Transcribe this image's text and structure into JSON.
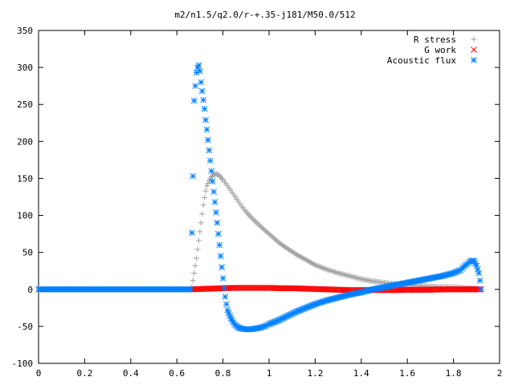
{
  "chart_data": {
    "type": "scatter",
    "title": "m2/n1.5/q2.0/r-+.35-j181/M50.0/512",
    "xlabel": "",
    "ylabel": "",
    "xlim": [
      0,
      2
    ],
    "ylim": [
      -100,
      350
    ],
    "x_ticks": [
      "0",
      "0.2",
      "0.4",
      "0.6",
      "0.8",
      "1",
      "1.2",
      "1.4",
      "1.6",
      "1.8",
      "2"
    ],
    "y_ticks": [
      "-100",
      "-50",
      "0",
      "50",
      "100",
      "150",
      "200",
      "250",
      "300",
      "350"
    ],
    "grid": false,
    "legend_position": "top-right",
    "series": [
      {
        "name": "R stress",
        "marker": "plus",
        "color": "#a0a0a0",
        "points": [
          [
            0.66,
            0
          ],
          [
            0.665,
            3
          ],
          [
            0.67,
            12
          ],
          [
            0.675,
            22
          ],
          [
            0.68,
            32
          ],
          [
            0.685,
            42
          ],
          [
            0.69,
            54
          ],
          [
            0.695,
            66
          ],
          [
            0.7,
            78
          ],
          [
            0.705,
            90
          ],
          [
            0.71,
            102
          ],
          [
            0.715,
            114
          ],
          [
            0.72,
            124
          ],
          [
            0.725,
            133
          ],
          [
            0.73,
            140
          ],
          [
            0.74,
            147
          ],
          [
            0.75,
            152
          ],
          [
            0.76,
            155
          ],
          [
            0.77,
            156
          ],
          [
            0.78,
            155
          ],
          [
            0.79,
            152
          ],
          [
            0.8,
            148
          ],
          [
            0.82,
            140
          ],
          [
            0.84,
            131
          ],
          [
            0.86,
            122
          ],
          [
            0.88,
            113
          ],
          [
            0.9,
            105
          ],
          [
            0.93,
            95
          ],
          [
            0.96,
            86
          ],
          [
            1.0,
            75
          ],
          [
            1.04,
            64
          ],
          [
            1.08,
            55
          ],
          [
            1.12,
            47
          ],
          [
            1.16,
            40
          ],
          [
            1.2,
            33
          ],
          [
            1.25,
            27
          ],
          [
            1.3,
            22
          ],
          [
            1.35,
            18
          ],
          [
            1.4,
            14
          ],
          [
            1.45,
            11
          ],
          [
            1.5,
            9
          ],
          [
            1.55,
            7
          ],
          [
            1.6,
            6
          ],
          [
            1.65,
            5
          ],
          [
            1.7,
            4
          ],
          [
            1.75,
            3
          ],
          [
            1.8,
            3
          ],
          [
            1.85,
            2
          ],
          [
            1.9,
            1
          ],
          [
            1.92,
            0
          ]
        ]
      },
      {
        "name": "G work",
        "marker": "cross",
        "color": "#ff0000",
        "points": [
          [
            0.66,
            0
          ],
          [
            0.7,
            0.5
          ],
          [
            0.75,
            1
          ],
          [
            0.8,
            1.5
          ],
          [
            0.85,
            2
          ],
          [
            0.9,
            2
          ],
          [
            0.95,
            2
          ],
          [
            1.0,
            2
          ],
          [
            1.05,
            1.5
          ],
          [
            1.1,
            1.5
          ],
          [
            1.15,
            1
          ],
          [
            1.2,
            0.5
          ],
          [
            1.25,
            0
          ],
          [
            1.3,
            -0.5
          ],
          [
            1.35,
            -1
          ],
          [
            1.4,
            -1
          ],
          [
            1.45,
            -1
          ],
          [
            1.5,
            -1
          ],
          [
            1.55,
            -1
          ],
          [
            1.6,
            -0.5
          ],
          [
            1.65,
            -0.5
          ],
          [
            1.7,
            -0.5
          ],
          [
            1.75,
            0
          ],
          [
            1.8,
            0
          ],
          [
            1.85,
            0
          ],
          [
            1.9,
            0
          ],
          [
            1.92,
            0
          ]
        ]
      },
      {
        "name": "Acoustic flux",
        "marker": "star",
        "color": "#0080ff",
        "points": [
          [
            0.0,
            0
          ],
          [
            0.66,
            0
          ],
          [
            0.67,
            153
          ],
          [
            0.675,
            255
          ],
          [
            0.68,
            275
          ],
          [
            0.685,
            293
          ],
          [
            0.69,
            300
          ],
          [
            0.695,
            303
          ],
          [
            0.7,
            295
          ],
          [
            0.705,
            280
          ],
          [
            0.71,
            268
          ],
          [
            0.715,
            256
          ],
          [
            0.72,
            244
          ],
          [
            0.725,
            229
          ],
          [
            0.73,
            216
          ],
          [
            0.735,
            202
          ],
          [
            0.74,
            188
          ],
          [
            0.745,
            174
          ],
          [
            0.75,
            160
          ],
          [
            0.755,
            146
          ],
          [
            0.76,
            132
          ],
          [
            0.765,
            118
          ],
          [
            0.77,
            104
          ],
          [
            0.775,
            90
          ],
          [
            0.78,
            75
          ],
          [
            0.785,
            60
          ],
          [
            0.79,
            45
          ],
          [
            0.795,
            30
          ],
          [
            0.8,
            15
          ],
          [
            0.805,
            2
          ],
          [
            0.81,
            -10
          ],
          [
            0.815,
            -20
          ],
          [
            0.82,
            -28
          ],
          [
            0.83,
            -36
          ],
          [
            0.84,
            -42
          ],
          [
            0.85,
            -47
          ],
          [
            0.86,
            -50
          ],
          [
            0.87,
            -52
          ],
          [
            0.88,
            -53
          ],
          [
            0.9,
            -54
          ],
          [
            0.92,
            -54
          ],
          [
            0.94,
            -53
          ],
          [
            0.96,
            -52
          ],
          [
            0.98,
            -50
          ],
          [
            1.0,
            -47
          ],
          [
            1.04,
            -42
          ],
          [
            1.08,
            -36
          ],
          [
            1.12,
            -30
          ],
          [
            1.16,
            -25
          ],
          [
            1.2,
            -20
          ],
          [
            1.25,
            -15
          ],
          [
            1.3,
            -11
          ],
          [
            1.35,
            -7
          ],
          [
            1.4,
            -4
          ],
          [
            1.45,
            0
          ],
          [
            1.5,
            3
          ],
          [
            1.55,
            6
          ],
          [
            1.6,
            9
          ],
          [
            1.65,
            12
          ],
          [
            1.7,
            15
          ],
          [
            1.75,
            18
          ],
          [
            1.8,
            22
          ],
          [
            1.83,
            26
          ],
          [
            1.85,
            32
          ],
          [
            1.87,
            37
          ],
          [
            1.88,
            39
          ],
          [
            1.89,
            38
          ],
          [
            1.9,
            32
          ],
          [
            1.91,
            22
          ],
          [
            1.915,
            12
          ],
          [
            1.92,
            0
          ]
        ]
      }
    ]
  }
}
